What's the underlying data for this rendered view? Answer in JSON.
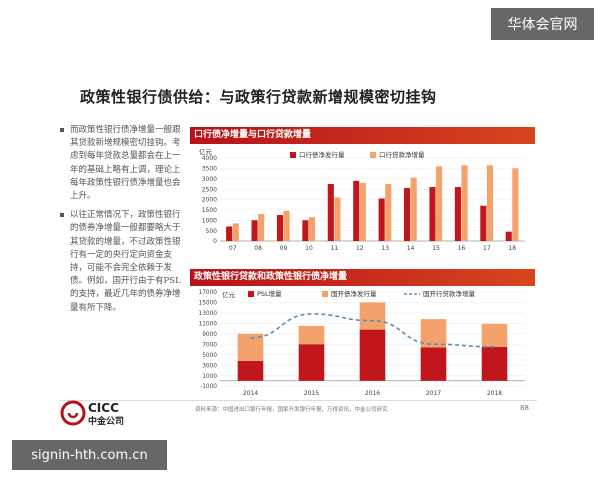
{
  "watermark_top": "华体会官网",
  "watermark_bottom": "signin-hth.com.cn",
  "slide_title": "政策性银行债供给：与政策行贷款新增规模密切挂钩",
  "bullets": [
    "而政策性银行债净增量一般跟其贷款新增规模密切挂钩。考虑到每年贷款总量都会在上一年的基础上略有上调，理论上每年政策性银行债净增量也会上升。",
    "以往正常情况下，政策性银行的债券净增量一般都要略大于其贷款的增量，不过政策性银行有一定的央行定向资金支持，可能不会完全依赖于发债。例如，国开行由于有PSL的支持，最近几年的债券净增量有所下降。"
  ],
  "source_note": "资料来源：中国进出口银行年报，国家开发银行年报，万得资讯，中金公司研究",
  "page_number": "88",
  "logo": {
    "en": "CICC",
    "cn": "中金公司"
  },
  "chart_data": [
    {
      "type": "bar",
      "title": "口行债净增量与口行贷款增量",
      "ylabel": "亿元",
      "ylim": [
        0,
        4000
      ],
      "yticks": [
        0,
        500,
        1000,
        1500,
        2000,
        2500,
        3000,
        3500,
        4000
      ],
      "categories": [
        "07",
        "08",
        "09",
        "10",
        "11",
        "12",
        "13",
        "14",
        "15",
        "16",
        "17",
        "18"
      ],
      "series": [
        {
          "name": "口行债净发行量",
          "color": "#c0161c",
          "values": [
            700,
            1000,
            1250,
            1000,
            2750,
            2900,
            2050,
            2550,
            2600,
            2600,
            1700,
            450
          ]
        },
        {
          "name": "口行贷款净增量",
          "color": "#f2a26a",
          "values": [
            850,
            1300,
            1450,
            1150,
            2100,
            2800,
            2750,
            3050,
            3600,
            3650,
            3650,
            3500
          ]
        }
      ],
      "legend": "top"
    },
    {
      "type": "bar",
      "title": "政策性银行贷款和政策性银行债净增量",
      "ylabel": "亿元",
      "ylim": [
        -1000,
        17000
      ],
      "yticks": [
        -1000,
        1000,
        3000,
        5000,
        7000,
        9000,
        11000,
        13000,
        15000,
        17000
      ],
      "categories": [
        "2014",
        "2015",
        "2016",
        "2017",
        "2018"
      ],
      "stacked": true,
      "series": [
        {
          "name": "PSL增量",
          "color": "#c0161c",
          "kind": "bar",
          "values": [
            3800,
            7000,
            9800,
            6400,
            6500
          ]
        },
        {
          "name": "国开债净发行量",
          "color": "#f2a26a",
          "kind": "bar",
          "values": [
            5200,
            3500,
            5200,
            5400,
            4400
          ]
        },
        {
          "name": "国开行贷款净增量",
          "color": "#5b8fb9",
          "kind": "dashed-line",
          "values": [
            8200,
            12800,
            11500,
            7000,
            6500
          ]
        }
      ],
      "legend": "top"
    }
  ]
}
